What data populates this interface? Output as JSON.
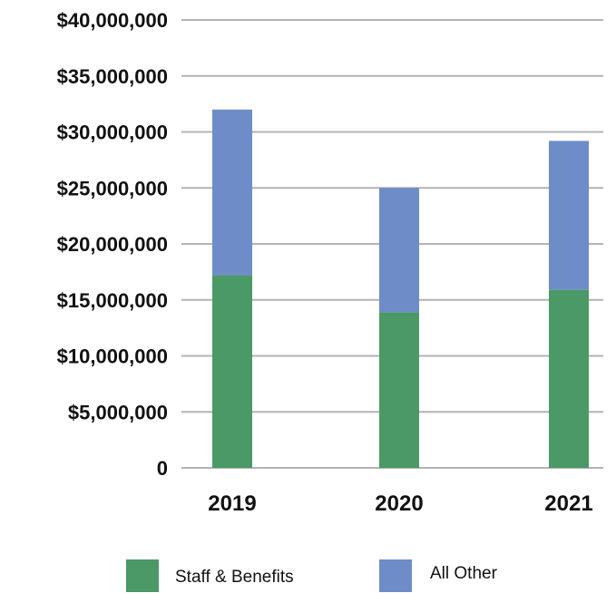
{
  "chart_data": {
    "type": "bar",
    "stacked": true,
    "categories": [
      "2019",
      "2020",
      "2021"
    ],
    "series": [
      {
        "name": "Staff & Benefits",
        "values": [
          17200000,
          13900000,
          15900000
        ],
        "color": "#4a9966"
      },
      {
        "name": "All Other",
        "values": [
          14800000,
          11100000,
          13300000
        ],
        "color": "#6e8cc8"
      }
    ],
    "ylim": [
      0,
      40000000
    ],
    "yticks": [
      0,
      5000000,
      10000000,
      15000000,
      20000000,
      25000000,
      30000000,
      35000000,
      40000000
    ],
    "ytick_labels": [
      "0",
      "$5,000,000",
      "$10,000,000",
      "$15,000,000",
      "$20,000,000",
      "$25,000,000",
      "$30,000,000",
      "$35,000,000",
      "$40,000,000"
    ],
    "grid": true,
    "legend": "bottom",
    "title": "",
    "xlabel": "",
    "ylabel": ""
  }
}
